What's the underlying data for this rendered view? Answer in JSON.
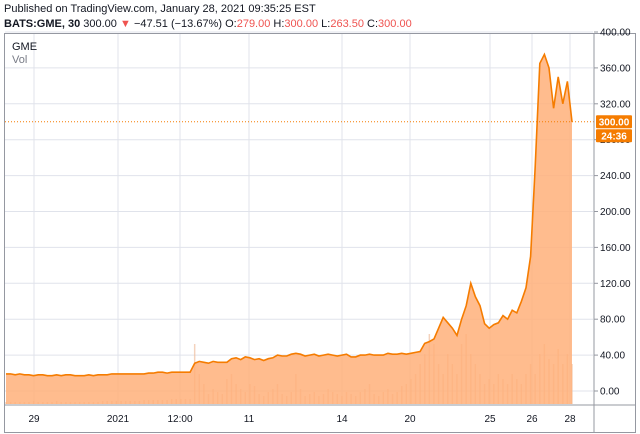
{
  "header": {
    "published": "Published on TradingView.com, January 28, 2021 09:35:25 EST",
    "symbol": "BATS:GME, 30",
    "last": "300.00",
    "arrow": "▼",
    "change": "−47.51 (−13.67%)",
    "o_label": "O:",
    "o_value": "279.00",
    "h_label": "H:",
    "h_value": "300.00",
    "l_label": "L:",
    "l_value": "263.50",
    "c_label": "C:",
    "c_value": "300.00"
  },
  "legend": {
    "symbol": "GME",
    "volume": "Vol"
  },
  "badges": {
    "price": "300.00",
    "countdown": "24:36"
  },
  "colors": {
    "line": "#f57c00",
    "fill": "#ffb07a",
    "grid": "#e0e3eb",
    "volume": "#f0c0a0",
    "badge": "#f57c00"
  },
  "chart_data": {
    "type": "area",
    "ylim": [
      -10,
      410
    ],
    "yticks": [
      "400.00",
      "360.00",
      "320.00",
      "280.00",
      "240.00",
      "200.00",
      "160.00",
      "120.00",
      "80.00",
      "40.00",
      "0.00"
    ],
    "ytick_values": [
      400,
      360,
      320,
      280,
      240,
      200,
      160,
      120,
      80,
      40,
      0
    ],
    "xticks": [
      "29",
      "2021",
      "12:00",
      "11",
      "14",
      "20",
      "25",
      "26",
      "28"
    ],
    "last_price": 300,
    "price_series": [
      19,
      19,
      18,
      19,
      18,
      18,
      17,
      18,
      18,
      17,
      17,
      18,
      17,
      18,
      18,
      17,
      17,
      17,
      18,
      17,
      18,
      18,
      18,
      19,
      19,
      19,
      19,
      19,
      19,
      19,
      19,
      20,
      20,
      21,
      21,
      20,
      21,
      21,
      21,
      21,
      21,
      31,
      33,
      32,
      31,
      33,
      32,
      32,
      32,
      36,
      37,
      35,
      38,
      37,
      35,
      36,
      34,
      36,
      37,
      40,
      39,
      39,
      41,
      42,
      41,
      39,
      40,
      41,
      39,
      40,
      41,
      40,
      39,
      40,
      41,
      38,
      38,
      40,
      40,
      41,
      40,
      40,
      40,
      42,
      41,
      41,
      42,
      41,
      42,
      43,
      44,
      53,
      55,
      58,
      70,
      82,
      76,
      70,
      62,
      80,
      95,
      120,
      105,
      95,
      75,
      70,
      74,
      76,
      84,
      80,
      90,
      87,
      100,
      115,
      150,
      250,
      365,
      375,
      360,
      315,
      350,
      320,
      345,
      300
    ]
  }
}
